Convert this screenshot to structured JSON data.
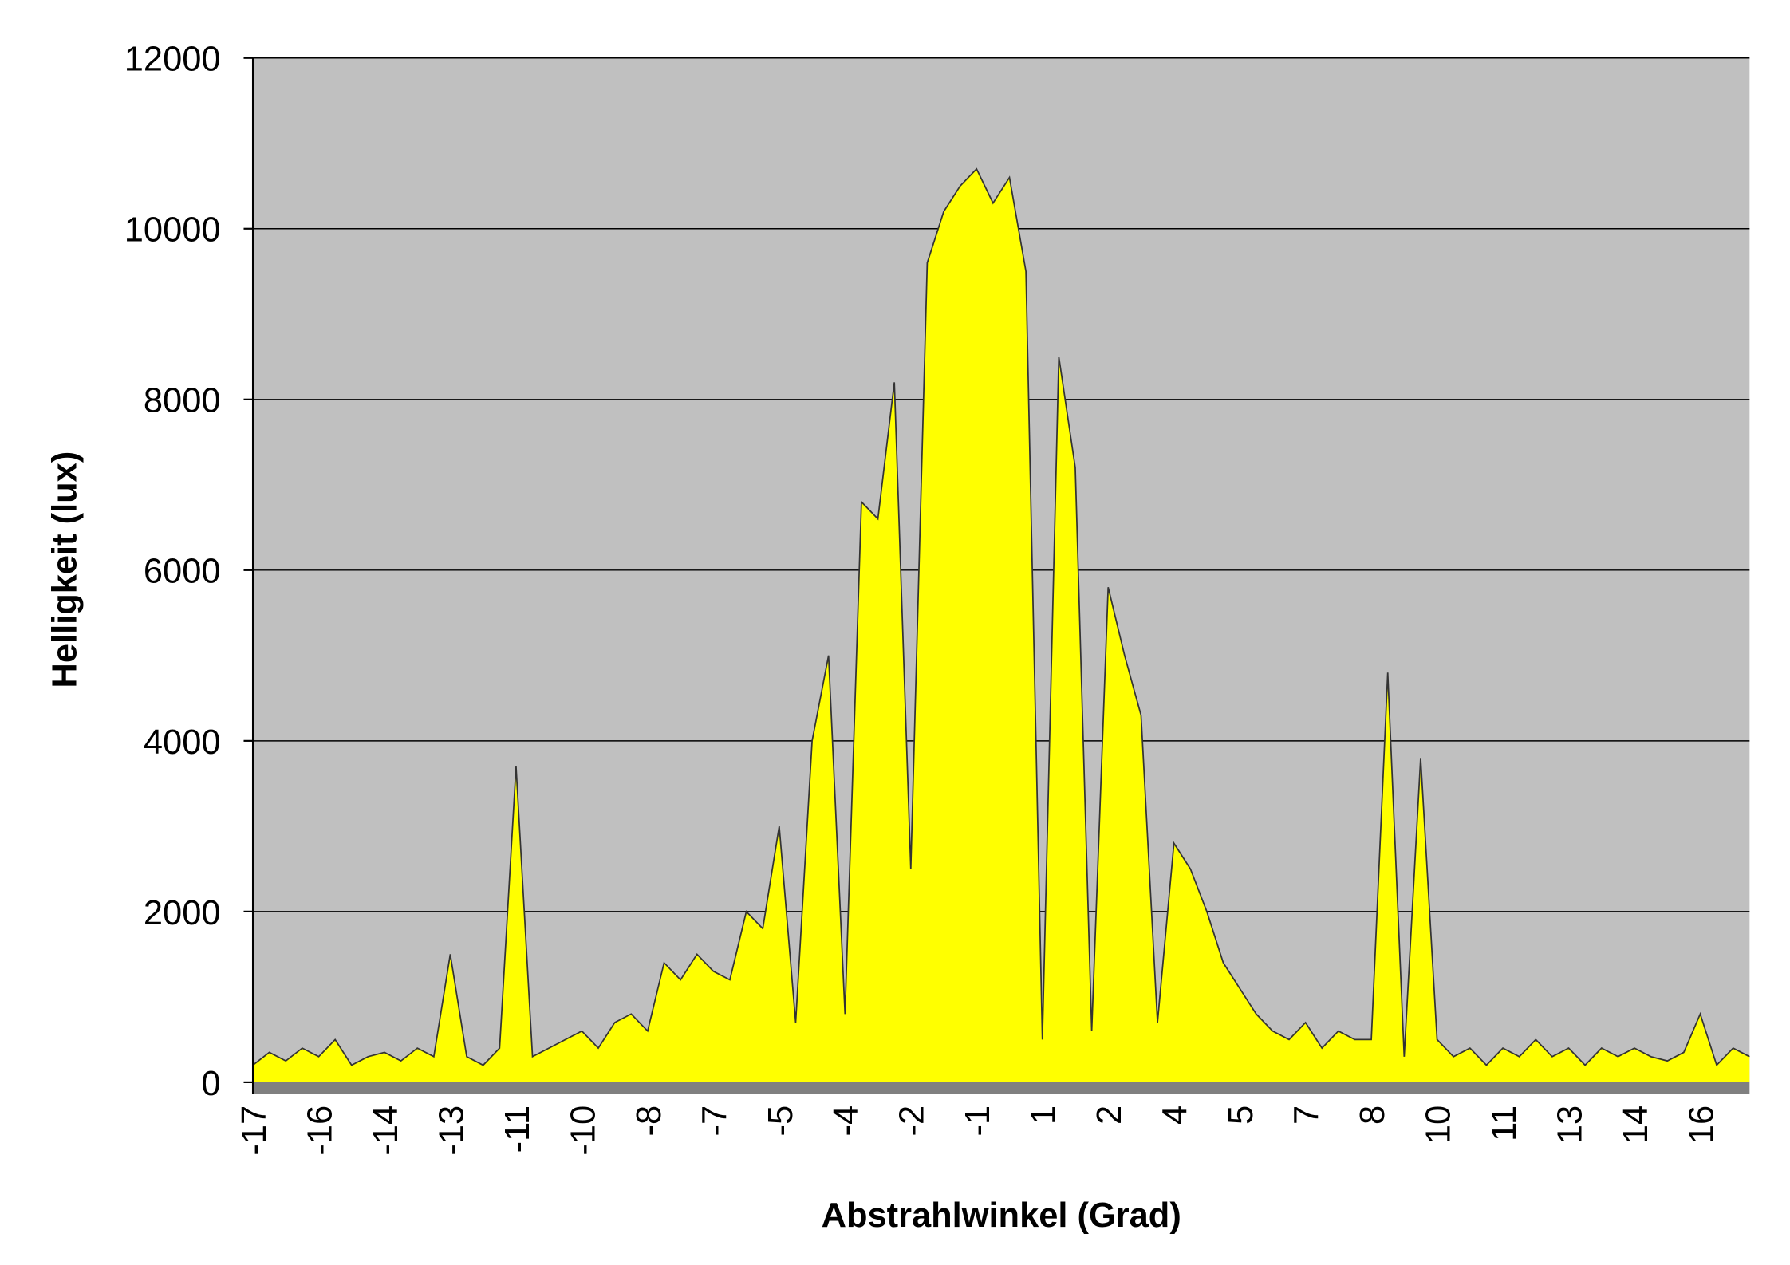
{
  "chart_data": {
    "type": "area",
    "x_label": "Abstrahlwinkel (Grad)",
    "y_label": "Helligkeit (lux)",
    "categories": [
      "-17",
      null,
      null,
      null,
      "-16",
      null,
      null,
      null,
      "-14",
      null,
      null,
      null,
      "-13",
      null,
      null,
      null,
      "-11",
      null,
      null,
      null,
      "-10",
      null,
      null,
      null,
      "-8",
      null,
      null,
      null,
      "-7",
      null,
      null,
      null,
      "-5",
      null,
      null,
      null,
      "-4",
      null,
      null,
      null,
      "-2",
      null,
      null,
      null,
      "-1",
      null,
      null,
      null,
      "1",
      null,
      null,
      null,
      "2",
      null,
      null,
      null,
      "4",
      null,
      null,
      null,
      "5",
      null,
      null,
      null,
      "7",
      null,
      null,
      null,
      "8",
      null,
      null,
      null,
      "10",
      null,
      null,
      null,
      "11",
      null,
      null,
      null,
      "13",
      null,
      null,
      null,
      "14",
      null,
      null,
      null,
      "16",
      null,
      null,
      null
    ],
    "values": [
      200,
      350,
      250,
      400,
      300,
      500,
      200,
      300,
      350,
      250,
      400,
      300,
      1500,
      300,
      200,
      400,
      3700,
      300,
      400,
      500,
      600,
      400,
      700,
      800,
      600,
      1400,
      1200,
      1500,
      1300,
      1200,
      2000,
      1800,
      3000,
      700,
      4000,
      5000,
      800,
      6800,
      6600,
      8200,
      2500,
      9600,
      10200,
      10500,
      10700,
      10300,
      10600,
      9500,
      500,
      8500,
      7200,
      600,
      5800,
      5000,
      4300,
      700,
      2800,
      2500,
      2000,
      1400,
      1100,
      800,
      600,
      500,
      700,
      400,
      600,
      500,
      500,
      4800,
      300,
      3800,
      500,
      300,
      400,
      200,
      400,
      300,
      500,
      300,
      400,
      200,
      400,
      300,
      400,
      300,
      250,
      350,
      800,
      200,
      400,
      300
    ],
    "color": "#ffff00",
    "background": "#c0c0c0",
    "ylim": [
      0,
      12000
    ],
    "yticks": [
      0,
      2000,
      4000,
      6000,
      8000,
      10000,
      12000
    ],
    "grid": true
  }
}
